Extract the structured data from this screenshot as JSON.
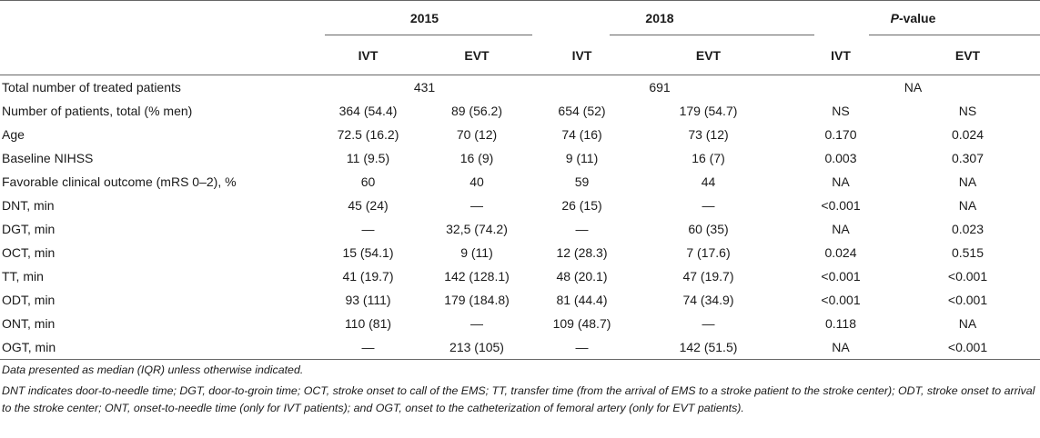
{
  "header": {
    "group_2015": "2015",
    "group_2018": "2018",
    "group_p_italic": "P",
    "group_p_rest": "-value",
    "sub": [
      "IVT",
      "EVT",
      "IVT",
      "EVT",
      "IVT",
      "EVT"
    ]
  },
  "rows": [
    {
      "label": "Total number of treated patients",
      "v2015": "431",
      "v2018": "691",
      "vp": "NA"
    },
    {
      "label": "Number of patients, total (% men)",
      "c": [
        "364 (54.4)",
        "89 (56.2)",
        "654 (52)",
        "179 (54.7)",
        "NS",
        "NS"
      ]
    },
    {
      "label": "Age",
      "c": [
        "72.5 (16.2)",
        "70 (12)",
        "74 (16)",
        "73 (12)",
        "0.170",
        "0.024"
      ]
    },
    {
      "label": "Baseline NIHSS",
      "c": [
        "11 (9.5)",
        "16 (9)",
        "9 (11)",
        "16 (7)",
        "0.003",
        "0.307"
      ]
    },
    {
      "label": "Favorable clinical outcome (mRS 0–2), %",
      "c": [
        "60",
        "40",
        "59",
        "44",
        "NA",
        "NA"
      ]
    },
    {
      "label": "DNT, min",
      "c": [
        "45 (24)",
        "—",
        "26 (15)",
        "—",
        "<0.001",
        "NA"
      ]
    },
    {
      "label": "DGT, min",
      "c": [
        "—",
        "32,5 (74.2)",
        "—",
        "60 (35)",
        "NA",
        "0.023"
      ]
    },
    {
      "label": "OCT, min",
      "c": [
        "15 (54.1)",
        "9 (11)",
        "12 (28.3)",
        "7 (17.6)",
        "0.024",
        "0.515"
      ]
    },
    {
      "label": "TT, min",
      "c": [
        "41 (19.7)",
        "142 (128.1)",
        "48 (20.1)",
        "47 (19.7)",
        "<0.001",
        "<0.001"
      ]
    },
    {
      "label": "ODT, min",
      "c": [
        "93 (111)",
        "179 (184.8)",
        "81 (44.4)",
        "74 (34.9)",
        "<0.001",
        "<0.001"
      ]
    },
    {
      "label": "ONT, min",
      "c": [
        "110 (81)",
        "—",
        "109 (48.7)",
        "—",
        "0.118",
        "NA"
      ]
    },
    {
      "label": "OGT, min",
      "c": [
        "—",
        "213 (105)",
        "—",
        "142 (51.5)",
        "NA",
        "<0.001"
      ]
    }
  ],
  "notes": {
    "line1": "Data presented as median (IQR) unless otherwise indicated.",
    "line2": "DNT indicates door-to-needle time; DGT, door-to-groin time; OCT, stroke onset to call of the EMS; TT, transfer time (from the arrival of EMS to a stroke patient to the stroke center); ODT, stroke onset to arrival to the stroke center; ONT, onset-to-needle time (only for IVT patients); and OGT, onset to the catheterization of femoral artery (only for EVT patients)."
  }
}
